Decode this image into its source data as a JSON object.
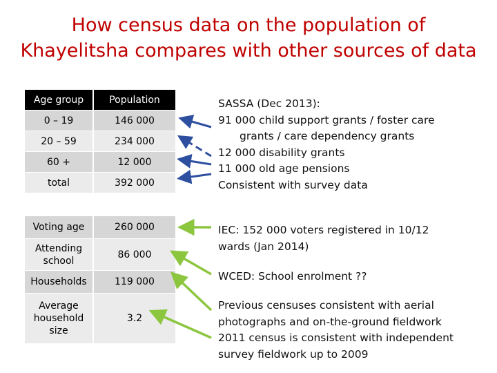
{
  "title": {
    "line1": "How census data on the population of",
    "line2": "Khayelitsha compares with other sources of data"
  },
  "table1": {
    "headers": [
      "Age group",
      "Population"
    ],
    "rows": [
      {
        "label": "0 – 19",
        "value": "146 000"
      },
      {
        "label": "20 – 59",
        "value": "234 000"
      },
      {
        "label": "60 +",
        "value": "12 000"
      },
      {
        "label": "total",
        "value": "392 000"
      }
    ]
  },
  "table2": {
    "rows": [
      {
        "label": "Voting age",
        "value": "260 000"
      },
      {
        "label": "Attending school",
        "value": "86 000"
      },
      {
        "label": "Households",
        "value": "119 000"
      },
      {
        "label": "Average household size",
        "value": "3.2"
      }
    ]
  },
  "sassa": {
    "line1": "SASSA (Dec 2013):",
    "line2": "91 000 child support grants / foster care",
    "line3": "grants / care dependency grants",
    "line4": "12 000 disability grants",
    "line5": "11 000 old age pensions",
    "line6": "Consistent with survey data"
  },
  "iec": {
    "line1": "IEC: 152 000 voters registered in 10/12",
    "line2": "wards (Jan 2014)"
  },
  "wced": "WCED: School enrolment ??",
  "previous": {
    "line1": "Previous censuses consistent with aerial",
    "line2": "photographs and on-the-ground fieldwork",
    "line3": "2011 census is consistent with independent",
    "line4": "survey fieldwork up to 2009"
  },
  "colors": {
    "title": "#c00000",
    "blue_arrow": "#2e4fa0",
    "green_arrow": "#8cc63f",
    "header_bg": "#000000"
  }
}
